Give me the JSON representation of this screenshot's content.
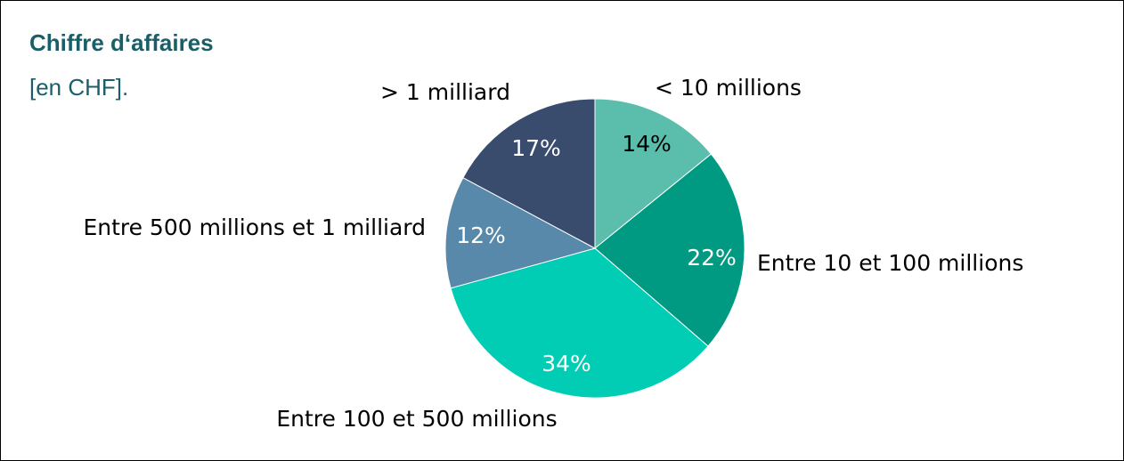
{
  "chart_data": {
    "type": "pie",
    "title": "Chiffre d‘affaires",
    "subtitle": "[en CHF].",
    "categories": [
      "< 10 millions",
      "Entre 10 et 100 millions",
      "Entre 100 et 500 millions",
      "Entre 500 millions et 1 milliard",
      "> 1 milliard"
    ],
    "values": [
      14,
      22,
      34,
      12,
      17
    ],
    "value_labels": [
      "14%",
      "22%",
      "34%",
      "12%",
      "17%"
    ],
    "colors": [
      "#5bbdac",
      "#009a82",
      "#00cdb4",
      "#5889aa",
      "#394c6d"
    ]
  }
}
